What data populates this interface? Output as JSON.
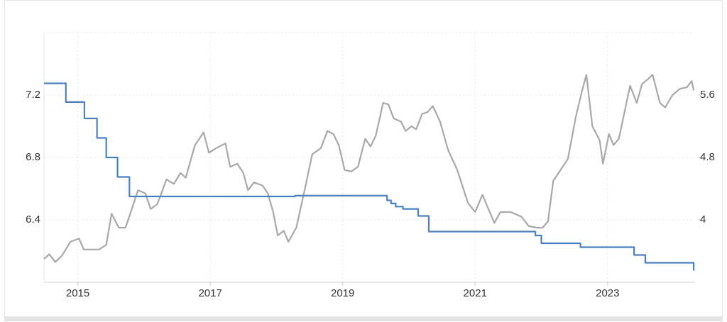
{
  "chart_data": {
    "type": "line",
    "xlim": [
      2014.49,
      2024.31
    ],
    "xticks": [
      2015,
      2017,
      2019,
      2021,
      2023
    ],
    "ylim": [
      6.0,
      7.6
    ],
    "yticks": [
      6.4,
      6.8,
      7.2
    ],
    "y2lim": [
      3.2,
      6.4
    ],
    "y2ticks": [
      4,
      4.8,
      5.6
    ],
    "grid": true,
    "series": [
      {
        "color": "#a8a8a8",
        "x": [
          2014.49,
          2014.57,
          2014.66,
          2014.76,
          2014.89,
          2015.02,
          2015.09,
          2015.32,
          2015.43,
          2015.51,
          2015.62,
          2015.72,
          2015.8,
          2015.91,
          2016.02,
          2016.1,
          2016.2,
          2016.34,
          2016.45,
          2016.55,
          2016.63,
          2016.77,
          2016.9,
          2016.98,
          2017.09,
          2017.23,
          2017.3,
          2017.41,
          2017.5,
          2017.57,
          2017.66,
          2017.79,
          2017.87,
          2017.95,
          2018.02,
          2018.11,
          2018.18,
          2018.3,
          2018.43,
          2018.54,
          2018.67,
          2018.77,
          2018.86,
          2018.94,
          2019.03,
          2019.13,
          2019.23,
          2019.34,
          2019.42,
          2019.5,
          2019.61,
          2019.69,
          2019.77,
          2019.88,
          2019.95,
          2020.04,
          2020.11,
          2020.2,
          2020.28,
          2020.36,
          2020.47,
          2020.59,
          2020.73,
          2020.89,
          2021.0,
          2021.11,
          2021.22,
          2021.29,
          2021.38,
          2021.54,
          2021.7,
          2021.81,
          2021.93,
          2022.02,
          2022.1,
          2022.18,
          2022.29,
          2022.4,
          2022.52,
          2022.61,
          2022.68,
          2022.77,
          2022.88,
          2022.93,
          2023.02,
          2023.09,
          2023.17,
          2023.25,
          2023.34,
          2023.44,
          2023.52,
          2023.63,
          2023.68,
          2023.79,
          2023.87,
          2023.98,
          2024.09,
          2024.2,
          2024.27,
          2024.3
        ],
        "values": [
          6.15,
          6.18,
          6.13,
          6.17,
          6.26,
          6.28,
          6.21,
          6.21,
          6.24,
          6.44,
          6.35,
          6.35,
          6.45,
          6.59,
          6.57,
          6.47,
          6.5,
          6.66,
          6.63,
          6.7,
          6.67,
          6.88,
          6.96,
          6.83,
          6.86,
          6.89,
          6.74,
          6.76,
          6.7,
          6.59,
          6.64,
          6.62,
          6.57,
          6.45,
          6.3,
          6.33,
          6.26,
          6.35,
          6.6,
          6.82,
          6.86,
          6.97,
          6.95,
          6.88,
          6.72,
          6.71,
          6.74,
          6.92,
          6.87,
          6.94,
          7.15,
          7.14,
          7.05,
          7.03,
          6.97,
          7.0,
          6.98,
          7.08,
          7.09,
          7.13,
          7.03,
          6.85,
          6.72,
          6.51,
          6.45,
          6.56,
          6.45,
          6.38,
          6.45,
          6.45,
          6.42,
          6.36,
          6.35,
          6.35,
          6.39,
          6.65,
          6.72,
          6.79,
          7.06,
          7.22,
          7.33,
          7.0,
          6.91,
          6.76,
          6.95,
          6.88,
          6.92,
          7.08,
          7.26,
          7.15,
          7.27,
          7.31,
          7.33,
          7.15,
          7.12,
          7.2,
          7.24,
          7.25,
          7.29,
          7.23
        ]
      },
      {
        "color": "#4a7fc1",
        "axis": "y2",
        "step": true,
        "x": [
          2014.49,
          2014.82,
          2015.1,
          2015.29,
          2015.43,
          2015.6,
          2015.78,
          2018.28,
          2019.67,
          2019.73,
          2019.8,
          2019.91,
          2020.14,
          2020.3,
          2021.91,
          2022.0,
          2022.59,
          2023.4,
          2023.57,
          2024.3
        ],
        "values": [
          5.75,
          5.51,
          5.3,
          5.05,
          4.8,
          4.55,
          4.3,
          4.31,
          4.25,
          4.21,
          4.17,
          4.14,
          4.05,
          3.85,
          3.8,
          3.7,
          3.65,
          3.55,
          3.45,
          3.35
        ]
      }
    ]
  }
}
